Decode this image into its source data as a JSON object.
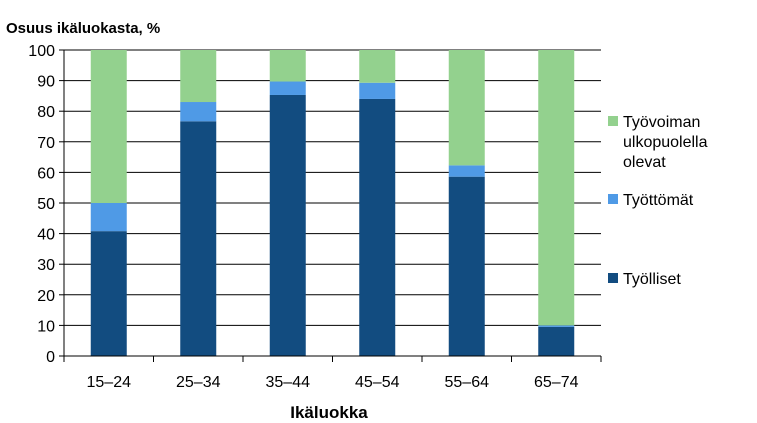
{
  "chart_data": {
    "type": "bar",
    "stacked": true,
    "title": "Osuus ikäluokasta, %",
    "xlabel": "Ikäluokka",
    "ylabel": "",
    "ylim": [
      0,
      100
    ],
    "yticks": [
      0,
      10,
      20,
      30,
      40,
      50,
      60,
      70,
      80,
      90,
      100
    ],
    "grid": true,
    "legend_position": "right",
    "categories": [
      "15–24",
      "25–34",
      "35–44",
      "45–54",
      "55–64",
      "65–74"
    ],
    "series": [
      {
        "name": "Työlliset",
        "color": "#124c80",
        "values": [
          40.8,
          76.7,
          85.3,
          84.0,
          58.6,
          9.5
        ]
      },
      {
        "name": "Työttömät",
        "color": "#4f9ae6",
        "values": [
          9.2,
          6.3,
          4.4,
          5.3,
          3.7,
          0.5
        ]
      },
      {
        "name": "Työvoiman ulkopuolella olevat",
        "color": "#93d18e",
        "values": [
          50.0,
          17.0,
          10.3,
          10.7,
          37.7,
          90.0
        ]
      }
    ],
    "legend": [
      {
        "lines": [
          "Työvoiman",
          "ulkopuolella",
          "olevat"
        ],
        "series": 2
      },
      {
        "lines": [
          "Työttömät"
        ],
        "series": 1
      },
      {
        "lines": [
          "Työlliset"
        ],
        "series": 0
      }
    ]
  }
}
